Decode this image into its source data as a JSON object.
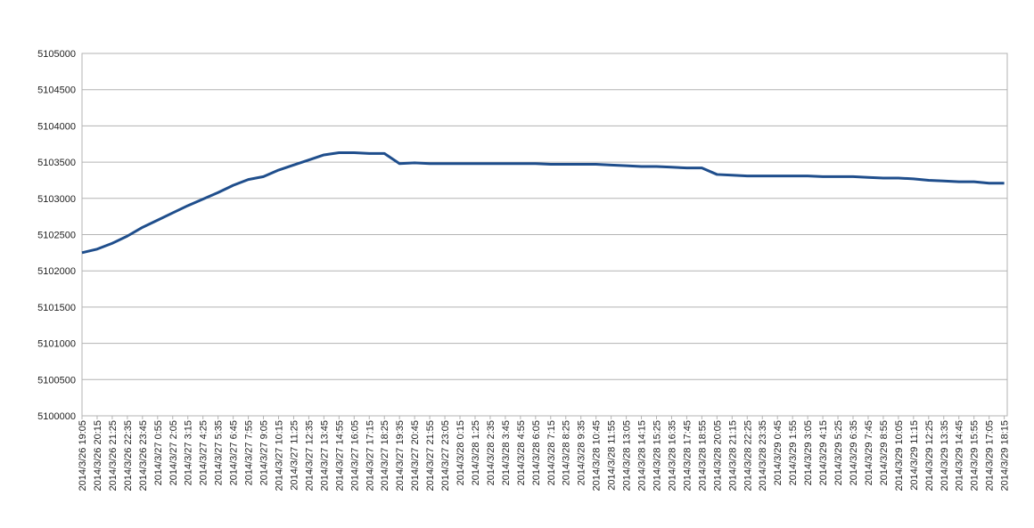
{
  "chart_data": {
    "type": "line",
    "categories": [
      "2014/3/26 19:05",
      "2014/3/26 20:15",
      "2014/3/26 21:25",
      "2014/3/26 22:35",
      "2014/3/26 23:45",
      "2014/3/27 0:55",
      "2014/3/27 2:05",
      "2014/3/27 3:15",
      "2014/3/27 4:25",
      "2014/3/27 5:35",
      "2014/3/27 6:45",
      "2014/3/27 7:55",
      "2014/3/27 9:05",
      "2014/3/27 10:15",
      "2014/3/27 11:25",
      "2014/3/27 12:35",
      "2014/3/27 13:45",
      "2014/3/27 14:55",
      "2014/3/27 16:05",
      "2014/3/27 17:15",
      "2014/3/27 18:25",
      "2014/3/27 19:35",
      "2014/3/27 20:45",
      "2014/3/27 21:55",
      "2014/3/27 23:05",
      "2014/3/28 0:15",
      "2014/3/28 1:25",
      "2014/3/28 2:35",
      "2014/3/28 3:45",
      "2014/3/28 4:55",
      "2014/3/28 6:05",
      "2014/3/28 7:15",
      "2014/3/28 8:25",
      "2014/3/28 9:35",
      "2014/3/28 10:45",
      "2014/3/28 11:55",
      "2014/3/28 13:05",
      "2014/3/28 14:15",
      "2014/3/28 15:25",
      "2014/3/28 16:35",
      "2014/3/28 17:45",
      "2014/3/28 18:55",
      "2014/3/28 20:05",
      "2014/3/28 21:15",
      "2014/3/28 22:25",
      "2014/3/28 23:35",
      "2014/3/29 0:45",
      "2014/3/29 1:55",
      "2014/3/29 3:05",
      "2014/3/29 4:15",
      "2014/3/29 5:25",
      "2014/3/29 6:35",
      "2014/3/29 7:45",
      "2014/3/29 8:55",
      "2014/3/29 10:05",
      "2014/3/29 11:15",
      "2014/3/29 12:25",
      "2014/3/29 13:35",
      "2014/3/29 14:45",
      "2014/3/29 15:55",
      "2014/3/29 17:05",
      "2014/3/29 18:15"
    ],
    "series": [
      {
        "color": "#1f4e8c",
        "values": [
          5102250,
          5102300,
          5102380,
          5102480,
          5102600,
          5102700,
          5102800,
          5102900,
          5102990,
          5103080,
          5103180,
          5103260,
          5103300,
          5103390,
          5103460,
          5103530,
          5103600,
          5103630,
          5103630,
          5103620,
          5103620,
          5103480,
          5103490,
          5103480,
          5103480,
          5103480,
          5103480,
          5103480,
          5103480,
          5103480,
          5103480,
          5103470,
          5103470,
          5103470,
          5103470,
          5103460,
          5103450,
          5103440,
          5103440,
          5103430,
          5103420,
          5103420,
          5103330,
          5103320,
          5103310,
          5103310,
          5103310,
          5103310,
          5103310,
          5103300,
          5103300,
          5103300,
          5103290,
          5103280,
          5103280,
          5103270,
          5103250,
          5103240,
          5103230,
          5103230,
          5103210,
          5103210
        ]
      }
    ],
    "ylim": [
      5100000,
      5105000
    ],
    "yticks": [
      5100000,
      5100500,
      5101000,
      5101500,
      5102000,
      5102500,
      5103000,
      5103500,
      5104000,
      5104500,
      5105000
    ],
    "grid": true
  }
}
